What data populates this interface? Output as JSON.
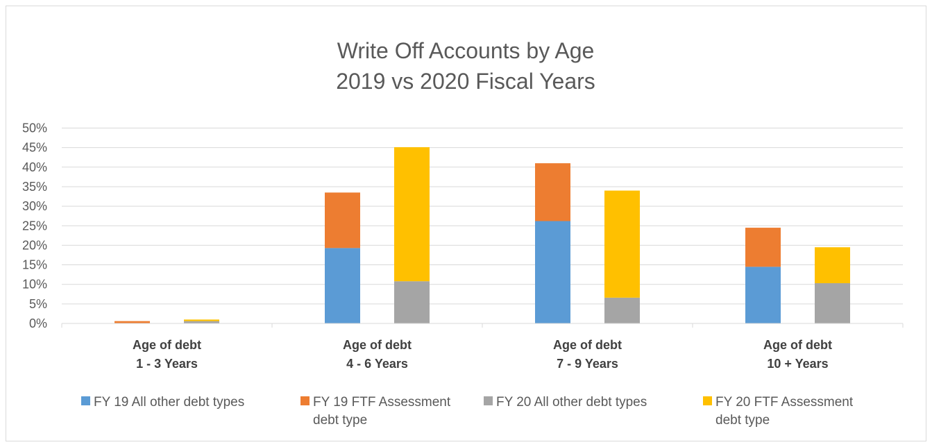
{
  "chart_data": {
    "type": "bar",
    "stacked": true,
    "title": [
      "Write Off Accounts by Age",
      "2019 vs 2020 Fiscal Years"
    ],
    "categories": [
      [
        "Age of debt",
        "1 - 3 Years"
      ],
      [
        "Age of debt",
        "4 - 6 Years"
      ],
      [
        "Age of debt",
        "7 - 9 Years"
      ],
      [
        "Age of debt",
        "10 + Years"
      ]
    ],
    "ylim": [
      0,
      50
    ],
    "yticks": [
      0,
      5,
      10,
      15,
      20,
      25,
      30,
      35,
      40,
      45,
      50
    ],
    "ytick_labels": [
      "0%",
      "5%",
      "10%",
      "15%",
      "20%",
      "25%",
      "30%",
      "35%",
      "40%",
      "45%",
      "50%"
    ],
    "grid": true,
    "legend_position": "bottom",
    "stacks": [
      {
        "name": "FY 19",
        "series": [
          {
            "name": "FY 19 All other debt types",
            "color": "#5b9bd5",
            "values": [
              0.1,
              19.3,
              26.2,
              14.5
            ]
          },
          {
            "name": "FY 19 FTF Assessment debt type",
            "color": "#ed7d31",
            "values": [
              0.5,
              14.2,
              14.8,
              10.0
            ]
          }
        ]
      },
      {
        "name": "FY 20",
        "series": [
          {
            "name": "FY 20 All other debt types",
            "color": "#a5a5a5",
            "values": [
              0.6,
              10.8,
              6.6,
              10.3
            ]
          },
          {
            "name": "FY 20 FTF Assessment debt type",
            "color": "#ffc000",
            "values": [
              0.4,
              34.3,
              27.4,
              9.2
            ]
          }
        ]
      }
    ],
    "legend": [
      {
        "lines": [
          "FY 19 All other debt types"
        ],
        "color": "#5b9bd5"
      },
      {
        "lines": [
          "FY 19 FTF Assessment",
          "debt type"
        ],
        "color": "#ed7d31"
      },
      {
        "lines": [
          "FY 20 All other debt types"
        ],
        "color": "#a5a5a5"
      },
      {
        "lines": [
          "FY 20 FTF Assessment",
          "debt type"
        ],
        "color": "#ffc000"
      }
    ]
  }
}
